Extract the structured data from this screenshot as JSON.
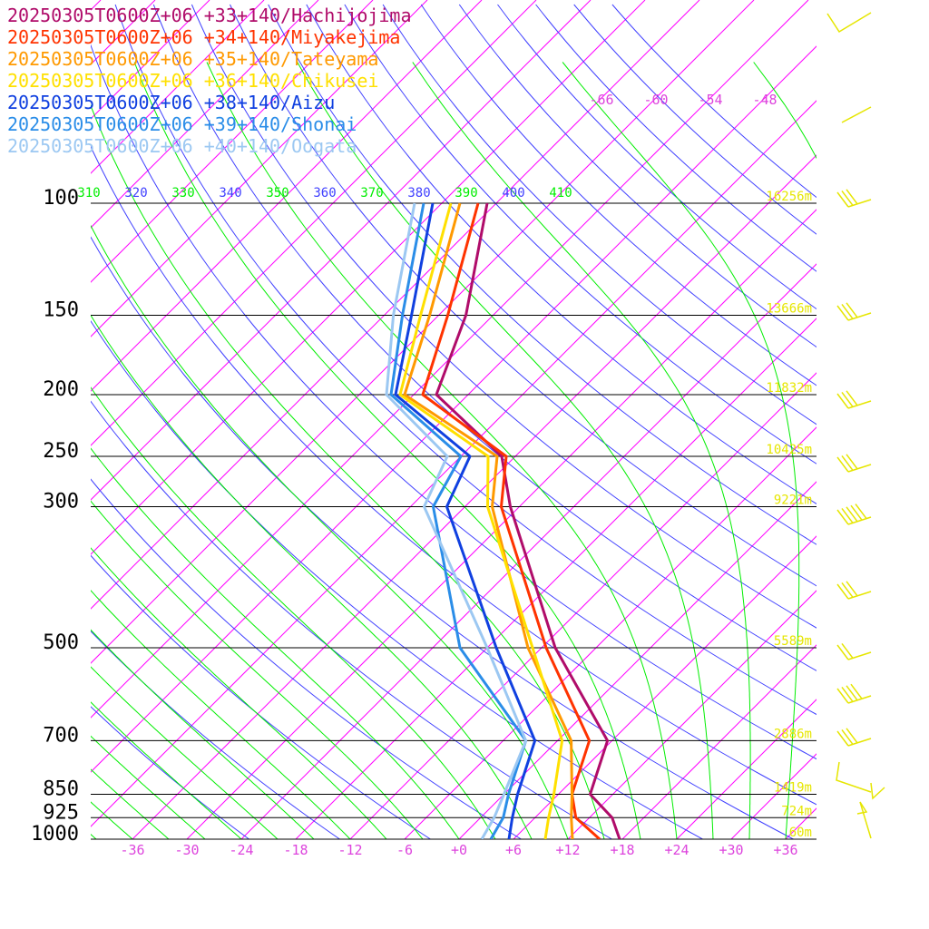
{
  "colors": {
    "isotherm": "#ff00ff",
    "dry_adiabat": "#4040ff",
    "moist_adiabat": "#00ee00",
    "pressure_line": "#000000",
    "height_label": "#e6e600",
    "wind_barb": "#e6e600",
    "temp_label": "#dd44dd"
  },
  "chart_data": {
    "type": "line",
    "title": "",
    "xlabel": "",
    "ylabel": "",
    "pressure_levels": [
      {
        "p": 100,
        "label": "100",
        "height": "16256m"
      },
      {
        "p": 150,
        "label": "150",
        "height": "13666m"
      },
      {
        "p": 200,
        "label": "200",
        "height": "11832m"
      },
      {
        "p": 250,
        "label": "250",
        "height": "10425m"
      },
      {
        "p": 300,
        "label": "300",
        "height": "9221m"
      },
      {
        "p": 500,
        "label": "500",
        "height": "5589m"
      },
      {
        "p": 700,
        "label": "700",
        "height": "2886m"
      },
      {
        "p": 850,
        "label": "850",
        "height": "1419m"
      },
      {
        "p": 925,
        "label": "925",
        "height": "724m"
      },
      {
        "p": 1000,
        "label": "1000",
        "height": "60m"
      }
    ],
    "temp_ticks": [
      "-36",
      "-30",
      "-24",
      "-18",
      "-12",
      "-6",
      "+0",
      "+6",
      "+12",
      "+18",
      "+24",
      "+30",
      "+36"
    ],
    "upper_temp_labels": [
      "-66",
      "-60",
      "-54",
      "-48"
    ],
    "theta_labels": [
      "310",
      "320",
      "330",
      "340",
      "350",
      "360",
      "370",
      "380",
      "390",
      "400",
      "410"
    ],
    "series": [
      {
        "name": "20250305T0600Z+06 +33+140/Hachijojima",
        "color": "#b00c6a",
        "points": [
          [
            1000,
            17.7
          ],
          [
            925,
            14.5
          ],
          [
            850,
            9.5
          ],
          [
            700,
            5.5
          ],
          [
            500,
            -10.5
          ],
          [
            300,
            -31.0
          ],
          [
            250,
            -37.5
          ],
          [
            200,
            -51.5
          ],
          [
            150,
            -57.0
          ],
          [
            100,
            -67.0
          ]
        ]
      },
      {
        "name": "20250305T0600Z+06 +34+140/Miyakejima",
        "color": "#ff3300",
        "points": [
          [
            1000,
            15.5
          ],
          [
            925,
            10.5
          ],
          [
            850,
            7.5
          ],
          [
            700,
            3.5
          ],
          [
            500,
            -11.5
          ],
          [
            300,
            -32.0
          ],
          [
            250,
            -37.0
          ],
          [
            200,
            -53.0
          ],
          [
            150,
            -59.0
          ],
          [
            100,
            -68.0
          ]
        ]
      },
      {
        "name": "20250305T0600Z+06 +35+140/Tateyama",
        "color": "#ff9900",
        "points": [
          [
            1000,
            12.5
          ],
          [
            925,
            10.0
          ],
          [
            850,
            7.5
          ],
          [
            700,
            1.5
          ],
          [
            500,
            -13.5
          ],
          [
            300,
            -33.0
          ],
          [
            250,
            -38.0
          ],
          [
            200,
            -55.0
          ],
          [
            150,
            -61.0
          ],
          [
            100,
            -70.0
          ]
        ]
      },
      {
        "name": "20250305T0600Z+06 +36+140/Chikusei",
        "color": "#ffe000",
        "points": [
          [
            1000,
            9.5
          ],
          [
            925,
            7.5
          ],
          [
            850,
            5.5
          ],
          [
            700,
            0.5
          ],
          [
            500,
            -13.0
          ],
          [
            300,
            -33.5
          ],
          [
            250,
            -39.0
          ],
          [
            200,
            -55.5
          ],
          [
            150,
            -62.0
          ],
          [
            100,
            -71.0
          ]
        ]
      },
      {
        "name": "20250305T0600Z+06 +38+140/Aizu",
        "color": "#1040e0",
        "points": [
          [
            1000,
            5.5
          ],
          [
            925,
            3.5
          ],
          [
            850,
            1.5
          ],
          [
            700,
            -2.5
          ],
          [
            500,
            -17.0
          ],
          [
            300,
            -38.0
          ],
          [
            250,
            -41.0
          ],
          [
            200,
            -56.0
          ],
          [
            150,
            -63.0
          ],
          [
            100,
            -73.0
          ]
        ]
      },
      {
        "name": "20250305T0600Z+06 +39+140/Shonai",
        "color": "#2a8de8",
        "points": [
          [
            1000,
            3.5
          ],
          [
            925,
            2.5
          ],
          [
            850,
            0.5
          ],
          [
            700,
            -3.5
          ],
          [
            500,
            -21.0
          ],
          [
            300,
            -39.5
          ],
          [
            250,
            -42.0
          ],
          [
            200,
            -56.5
          ],
          [
            150,
            -64.0
          ],
          [
            100,
            -74.0
          ]
        ]
      },
      {
        "name": "20250305T0600Z+06 +40+140/Oogata",
        "color": "#9cc8f2",
        "points": [
          [
            1000,
            2.5
          ],
          [
            925,
            1.5
          ],
          [
            850,
            0.0
          ],
          [
            700,
            -3.5
          ],
          [
            500,
            -18.0
          ],
          [
            300,
            -40.5
          ],
          [
            250,
            -43.5
          ],
          [
            200,
            -57.0
          ],
          [
            150,
            -65.0
          ],
          [
            100,
            -75.0
          ]
        ]
      }
    ]
  }
}
